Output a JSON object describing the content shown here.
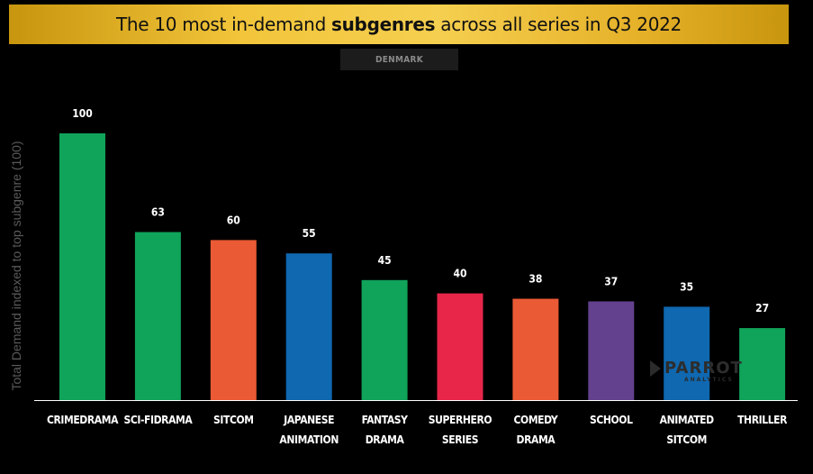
{
  "header": {
    "title_pre": "The 10 most in-demand ",
    "title_bold": "subgenres",
    "title_post": " across all series in Q3 2022",
    "country": "DENMARK"
  },
  "logo": {
    "name": "PARROT",
    "sub": "ANALYTICS"
  },
  "chart_data": {
    "type": "bar",
    "title": "The 10 most in-demand subgenres across all series in Q3 2022",
    "subtitle": "DENMARK",
    "ylabel": "Total Demand indexed to top subgenre (100)",
    "xlabel": "",
    "ylim": [
      0,
      100
    ],
    "grid": false,
    "categories": [
      [
        "CRIMEDRAMA"
      ],
      [
        "SCI-FIDRAMA"
      ],
      [
        "SITCOM"
      ],
      [
        "JAPANESE",
        "ANIMATION"
      ],
      [
        "FANTASY",
        "DRAMA"
      ],
      [
        "SUPERHERO",
        "SERIES"
      ],
      [
        "COMEDY",
        "DRAMA"
      ],
      [
        "SCHOOL"
      ],
      [
        "ANIMATED",
        "SITCOM"
      ],
      [
        "THRILLER"
      ]
    ],
    "values": [
      100,
      63,
      60,
      55,
      45,
      40,
      38,
      37,
      35,
      27
    ],
    "colors": [
      "#10a35a",
      "#10a35a",
      "#ea5a35",
      "#0f68b0",
      "#10a35a",
      "#e8264a",
      "#ea5a35",
      "#64418e",
      "#0f68b0",
      "#10a35a"
    ]
  }
}
